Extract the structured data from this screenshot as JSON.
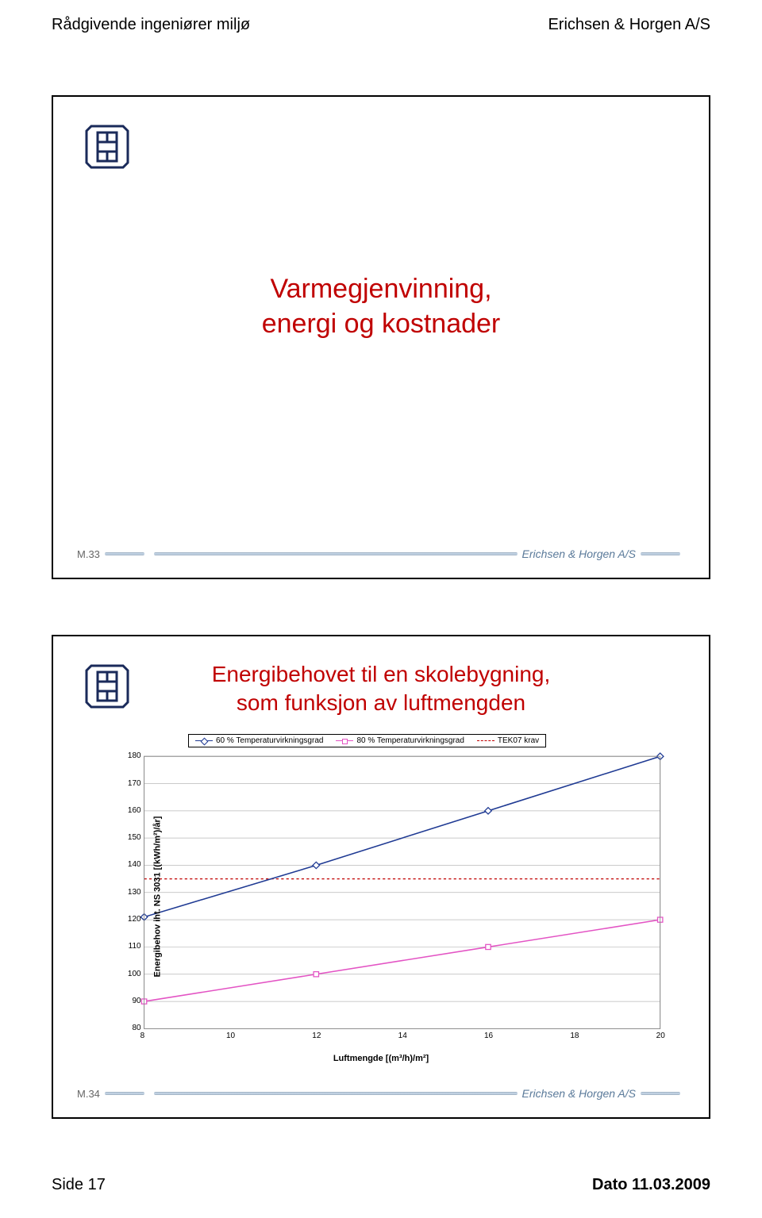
{
  "header": {
    "left": "Rådgivende ingeniører miljø",
    "right": "Erichsen & Horgen A/S"
  },
  "footer": {
    "left": "Side 17",
    "right": "Dato 11.03.2009"
  },
  "slide1": {
    "mnum": "M.33",
    "company": "Erichsen & Horgen A/S",
    "title_line1": "Varmegjenvinning,",
    "title_line2": "energi og kostnader"
  },
  "slide2": {
    "mnum": "M.34",
    "company": "Erichsen & Horgen A/S",
    "title_line1": "Energibehovet til en skolebygning,",
    "title_line2": "som funksjon av luftmengden"
  },
  "chart": {
    "type": "line",
    "ylabel": "Energibehov iht. NS 3031 [(kWh/m²)/år]",
    "xlabel": "Luftmengde [(m³/h)/m²]",
    "ylim": [
      80,
      180
    ],
    "ytick_step": 10,
    "xlim": [
      8,
      20
    ],
    "xtick_step": 2,
    "yticks": [
      "180",
      "170",
      "160",
      "150",
      "140",
      "130",
      "120",
      "110",
      "100",
      "90",
      "80"
    ],
    "xticks": [
      "8",
      "10",
      "12",
      "14",
      "16",
      "18",
      "20"
    ],
    "background_color": "#ffffff",
    "grid_color": "#b8b8b8",
    "tek07_y": 135,
    "tek07_color": "#c00000",
    "series": [
      {
        "name": "60 % Temperaturvirkningsgrad",
        "color": "#1f3a93",
        "marker": "diamond",
        "x": [
          8,
          12,
          16,
          20
        ],
        "y": [
          121,
          140,
          160,
          180
        ]
      },
      {
        "name": "80 % Temperaturvirkningsgrad",
        "color": "#e354c4",
        "marker": "square",
        "x": [
          8,
          12,
          16,
          20
        ],
        "y": [
          90,
          100,
          110,
          120
        ]
      }
    ],
    "legend": [
      {
        "label": "60 % Temperaturvirkningsgrad",
        "color": "#1f3a93",
        "marker": "diamond"
      },
      {
        "label": "80 % Temperaturvirkningsgrad",
        "color": "#e354c4",
        "marker": "square"
      },
      {
        "label": "TEK07 krav",
        "color": "#c00000",
        "style": "dash"
      }
    ]
  }
}
